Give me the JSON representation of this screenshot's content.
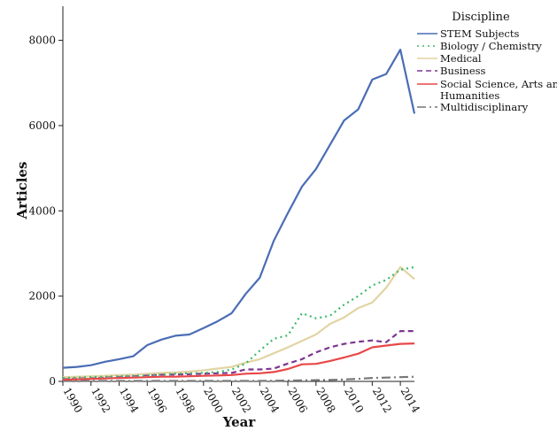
{
  "chart_data": {
    "type": "line",
    "xlabel": "Year",
    "ylabel": "Articles",
    "xlim": [
      1990,
      2015
    ],
    "ylim": [
      0,
      8800
    ],
    "x_ticks": [
      "1990",
      "1992",
      "1994",
      "1996",
      "1998",
      "2000",
      "2002",
      "2004",
      "2006",
      "2008",
      "2010",
      "2012",
      "2014"
    ],
    "y_ticks": [
      "0",
      "2000",
      "4000",
      "6000",
      "8000"
    ],
    "grid": false,
    "legend": {
      "title": "Discipline",
      "position": "top-right"
    },
    "x": [
      1990,
      1991,
      1992,
      1993,
      1994,
      1995,
      1996,
      1997,
      1998,
      1999,
      2000,
      2001,
      2002,
      2003,
      2004,
      2005,
      2006,
      2007,
      2008,
      2009,
      2010,
      2011,
      2012,
      2013,
      2014,
      2015
    ],
    "series": [
      {
        "name": "STEM Subjects",
        "color": "#4a6db5",
        "dash": "solid",
        "values": [
          320,
          340,
          380,
          460,
          520,
          590,
          850,
          980,
          1070,
          1100,
          1250,
          1410,
          1600,
          2050,
          2430,
          3300,
          3950,
          4570,
          4980,
          5550,
          6120,
          6380,
          7080,
          7210,
          7780,
          6280
        ]
      },
      {
        "name": "Biology / Chemistry",
        "color": "#3cb868",
        "dash": "dot",
        "values": [
          80,
          90,
          100,
          110,
          120,
          130,
          140,
          160,
          180,
          190,
          200,
          220,
          280,
          420,
          720,
          1000,
          1080,
          1600,
          1480,
          1540,
          1800,
          2000,
          2250,
          2380,
          2620,
          2680
        ]
      },
      {
        "name": "Medical",
        "color": "#e2d4a4",
        "dash": "solid",
        "values": [
          100,
          110,
          120,
          130,
          150,
          160,
          180,
          200,
          210,
          230,
          260,
          300,
          340,
          440,
          520,
          660,
          800,
          950,
          1100,
          1350,
          1500,
          1720,
          1850,
          2200,
          2680,
          2400
        ]
      },
      {
        "name": "Business",
        "color": "#7d3590",
        "dash": "dash",
        "values": [
          90,
          100,
          110,
          120,
          130,
          140,
          150,
          160,
          160,
          170,
          180,
          190,
          200,
          280,
          280,
          300,
          420,
          520,
          680,
          800,
          880,
          930,
          960,
          920,
          1180,
          1180
        ]
      },
      {
        "name": "Social Science, Arts and Humanities",
        "color": "#e84748",
        "dash": "solid",
        "values": [
          40,
          50,
          60,
          70,
          80,
          90,
          100,
          110,
          110,
          120,
          130,
          140,
          150,
          180,
          190,
          220,
          290,
          400,
          410,
          480,
          560,
          650,
          800,
          840,
          880,
          890
        ]
      },
      {
        "name": "Multidisciplinary",
        "color": "#777777",
        "dash": "dashdot",
        "values": [
          10,
          10,
          10,
          10,
          10,
          10,
          10,
          10,
          10,
          10,
          10,
          10,
          10,
          10,
          10,
          15,
          20,
          25,
          30,
          35,
          45,
          60,
          80,
          90,
          100,
          110
        ]
      }
    ]
  }
}
